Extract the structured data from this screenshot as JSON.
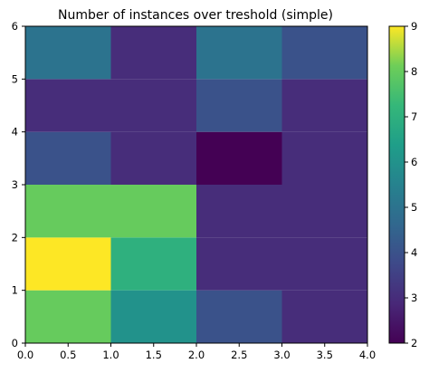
{
  "chart_data": {
    "type": "heatmap",
    "title": "Number of instances over treshold (simple)",
    "xlabel": "",
    "ylabel": "",
    "x_edges": [
      0,
      1,
      2,
      3,
      4
    ],
    "y_edges": [
      0,
      1,
      2,
      3,
      4,
      5,
      6
    ],
    "xlim": [
      0,
      4
    ],
    "ylim": [
      0,
      6
    ],
    "x_ticks": [
      "0.0",
      "0.5",
      "1.0",
      "1.5",
      "2.0",
      "2.5",
      "3.0",
      "3.5",
      "4.0"
    ],
    "y_ticks": [
      "0",
      "1",
      "2",
      "3",
      "4",
      "5",
      "6"
    ],
    "values": [
      [
        8,
        6,
        4,
        3
      ],
      [
        9,
        7,
        3,
        3
      ],
      [
        8,
        8,
        3,
        3
      ],
      [
        4,
        3,
        2,
        3
      ],
      [
        3,
        3,
        4,
        3
      ],
      [
        5,
        3,
        5,
        4
      ]
    ],
    "colorbar": {
      "label": "",
      "range": [
        2,
        9
      ],
      "ticks": [
        "2",
        "3",
        "4",
        "5",
        "6",
        "7",
        "8",
        "9"
      ],
      "colormap": "viridis"
    },
    "grid": false
  }
}
